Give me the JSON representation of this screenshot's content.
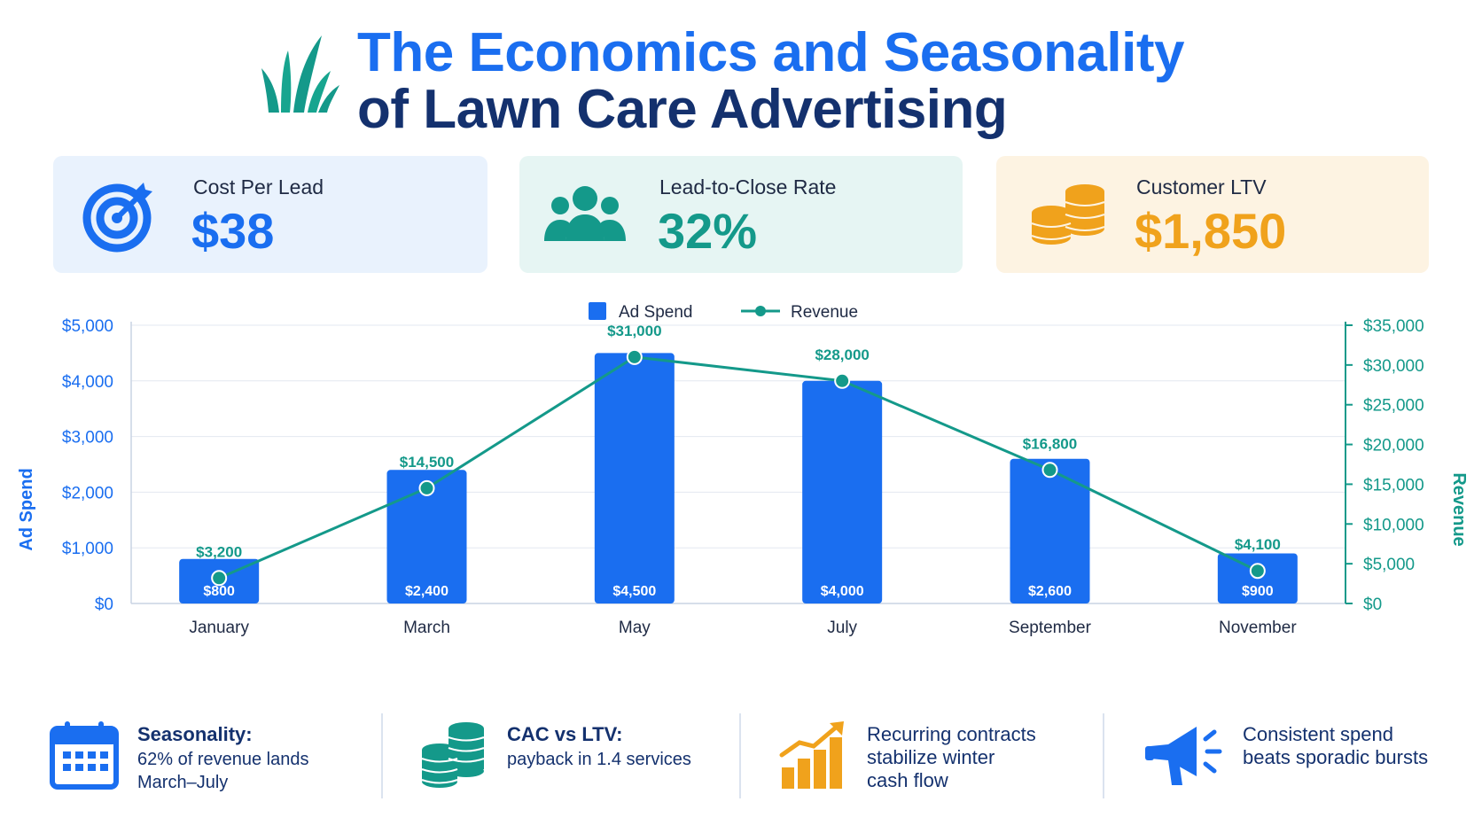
{
  "title": {
    "line1": "The Economics and Seasonality",
    "line2": "of Lawn Care Advertising"
  },
  "kpis": [
    {
      "label": "Cost Per Lead",
      "value": "$38",
      "icon": "target-icon"
    },
    {
      "label": "Lead-to-Close Rate",
      "value": "32%",
      "icon": "people-icon"
    },
    {
      "label": "Customer LTV",
      "value": "$1,850",
      "icon": "coins-icon"
    }
  ],
  "colors": {
    "blue": "#1a6ef0",
    "teal": "#14998a",
    "orange": "#f0a21c",
    "navy": "#14316e"
  },
  "chart_data": {
    "type": "bar",
    "categories": [
      "January",
      "March",
      "May",
      "July",
      "September",
      "November"
    ],
    "series": [
      {
        "name": "Ad Spend",
        "type": "bar",
        "axis": "left",
        "values": [
          800,
          2400,
          4500,
          4000,
          2600,
          900
        ],
        "labels": [
          "$800",
          "$2,400",
          "$4,500",
          "$4,000",
          "$2,600",
          "$900"
        ]
      },
      {
        "name": "Revenue",
        "type": "line",
        "axis": "right",
        "values": [
          3200,
          14500,
          31000,
          28000,
          16800,
          4100
        ],
        "labels": [
          "$3,200",
          "$14,500",
          "$31,000",
          "$28,000",
          "$16,800",
          "$4,100"
        ]
      }
    ],
    "ylabel_left": "Ad Spend",
    "ylabel_right": "Revenue",
    "ylim_left": [
      0,
      5000
    ],
    "ylim_right": [
      0,
      35000
    ],
    "yticks_left": [
      {
        "value": 0,
        "label": "$0"
      },
      {
        "value": 1000,
        "label": "$1,000"
      },
      {
        "value": 2000,
        "label": "$2,000"
      },
      {
        "value": 3000,
        "label": "$3,000"
      },
      {
        "value": 4000,
        "label": "$4,000"
      },
      {
        "value": 5000,
        "label": "$5,000"
      }
    ],
    "yticks_right": [
      {
        "value": 0,
        "label": "$0"
      },
      {
        "value": 5000,
        "label": "$5,000"
      },
      {
        "value": 10000,
        "label": "$10,000"
      },
      {
        "value": 15000,
        "label": "$15,000"
      },
      {
        "value": 20000,
        "label": "$20,000"
      },
      {
        "value": 25000,
        "label": "$25,000"
      },
      {
        "value": 30000,
        "label": "$30,000"
      },
      {
        "value": 35000,
        "label": "$35,000"
      }
    ],
    "grid": true,
    "legend": "top-center"
  },
  "insights": [
    {
      "title": "Seasonality:",
      "text": "62% of revenue lands\nMarch–July",
      "icon": "calendar-icon"
    },
    {
      "title": "CAC vs LTV:",
      "text": "payback in 1.4 services",
      "icon": "coin-stack-icon"
    },
    {
      "title": "Recurring contracts\nstabilize winter\ncash flow",
      "text": "",
      "icon": "growth-chart-icon"
    },
    {
      "title": "Consistent spend\nbeats sporadic bursts",
      "text": "",
      "icon": "megaphone-icon"
    }
  ]
}
